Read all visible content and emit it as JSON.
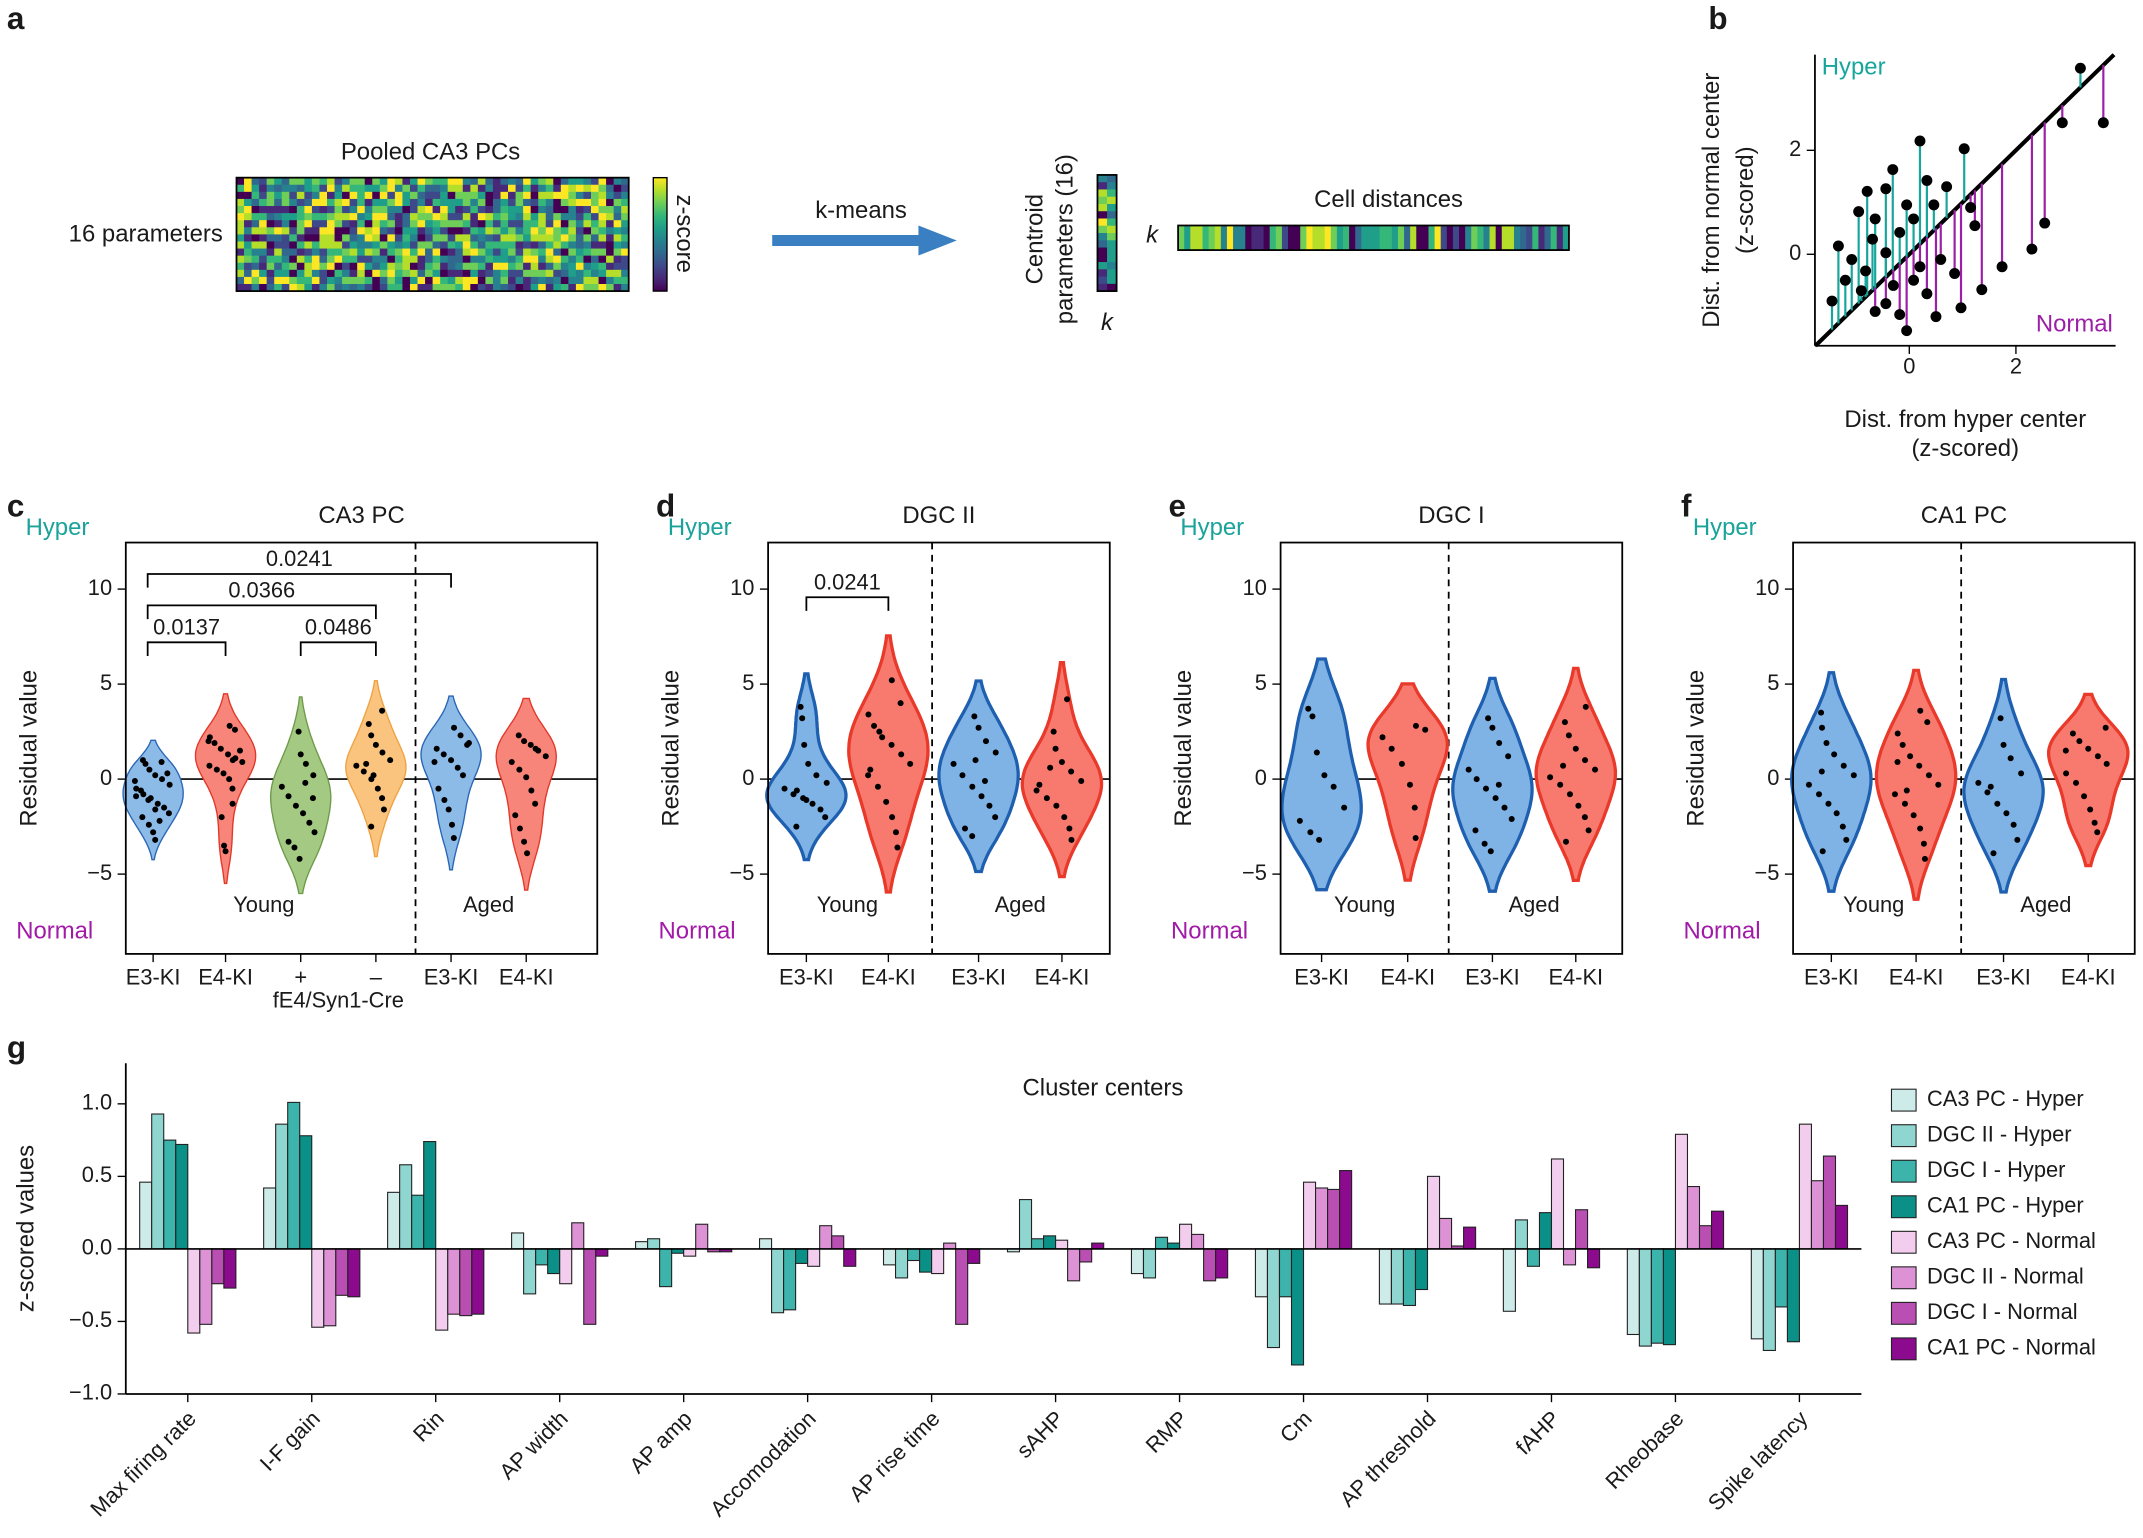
{
  "panel_labels": [
    "a",
    "b",
    "c",
    "d",
    "e",
    "f",
    "g"
  ],
  "diagram": {
    "heatmap_title": "Pooled CA3 PCs",
    "rows_label": "16 parameters",
    "colorbar_label": "z-score",
    "arrow_label": "k-means",
    "centroid_label": [
      "Centroid",
      "parameters (16)"
    ],
    "centroid_k": "k",
    "distances_k": "k",
    "distances_title": "Cell distances"
  },
  "chart_data": [
    {
      "type": "scatter",
      "xlabel": [
        "Dist. from hyper center",
        "(z-scored)"
      ],
      "ylabel": [
        "Dist. from normal center",
        "(z-scored)"
      ],
      "xlim": [
        -1.77,
        3.87
      ],
      "ylim": [
        -1.76,
        3.84
      ],
      "xticks": [
        0,
        2
      ],
      "yticks": [
        0,
        2
      ],
      "marker_color": "#000000",
      "series": [
        {
          "name": "Hyper",
          "color": "#17a69c",
          "x": [
            0.2,
            1.03,
            -0.44,
            -0.79,
            0.33,
            -0.31,
            -0.05,
            -0.95,
            -0.64,
            -1.33,
            -1.08,
            -1.2,
            -0.82,
            -0.44,
            -0.18,
            0.08,
            0.46,
            -0.69,
            3.21,
            -1.45,
            -0.9,
            0.7
          ],
          "values": [
            2.18,
            2.03,
            1.26,
            1.21,
            1.42,
            1.63,
            0.95,
            0.82,
            0.68,
            0.16,
            -0.1,
            -0.5,
            -0.32,
            0.03,
            0.42,
            0.68,
            0.95,
            0.29,
            3.58,
            -0.9,
            -0.7,
            1.3
          ]
        },
        {
          "name": "Normal",
          "color": "#9c1fa8",
          "x": [
            1.15,
            1.23,
            2.54,
            3.64,
            2.87,
            0.59,
            0.85,
            0.33,
            -0.18,
            -0.05,
            -0.44,
            0.08,
            0.97,
            1.36,
            1.74,
            0.2,
            -0.64,
            -0.3,
            0.5,
            2.3
          ],
          "values": [
            0.9,
            0.55,
            0.6,
            2.53,
            2.53,
            -0.1,
            -0.37,
            -0.76,
            -1.16,
            -1.47,
            -0.95,
            -0.5,
            -1.03,
            -0.68,
            -0.24,
            -0.24,
            -1.1,
            -0.6,
            -1.2,
            0.1
          ]
        }
      ]
    },
    {
      "type": "violin",
      "title": "CA3 PC",
      "ylabel": "Residual value",
      "top_label": "Hyper",
      "bottom_label": "Normal",
      "xlabel": "fE4/Syn1-Cre",
      "ylim": [
        -9.2,
        12.45
      ],
      "yticks": [
        {
          "value": -5,
          "label": "−5"
        },
        0,
        5,
        10
      ],
      "categories": [
        "E3-KI",
        "E4-KI",
        "+",
        "–",
        "E3-KI",
        "E4-KI"
      ],
      "groups": [
        "Young",
        "Aged"
      ],
      "comparisons": [
        0.0241,
        0.0366,
        0.0137,
        0.0486
      ],
      "violins": [
        {
          "fill": "#8dbbe8",
          "stroke": "#2a66b5",
          "values": [
            1.0,
            0.8,
            0.5,
            0.2,
            0,
            -0.3,
            -0.5,
            -0.8,
            -1.0,
            -1.3,
            -1.5,
            -1.8,
            -2.0,
            -2.4,
            -2.8,
            -3.2,
            0.9,
            -0.1,
            -0.6,
            -1.1,
            -1.6,
            -2.2,
            0.3,
            -0.9
          ]
        },
        {
          "fill": "#f8857a",
          "stroke": "#e2382a",
          "values": [
            2.8,
            2.6,
            2.2,
            1.9,
            1.6,
            1.3,
            1.1,
            0.9,
            0.7,
            0.5,
            0.3,
            0,
            -0.5,
            -1.3,
            -2.0,
            -3.5,
            -3.8,
            1.0,
            1.5,
            2.0
          ]
        },
        {
          "fill": "#a3c982",
          "stroke": "#6f9a4a",
          "values": [
            2.5,
            1.3,
            0.8,
            0.2,
            -0.4,
            -0.9,
            -1.4,
            -1.8,
            -2.3,
            -2.8,
            -3.3,
            -3.6,
            -4.2,
            -0.2,
            -1.0
          ]
        },
        {
          "fill": "#fbc47e",
          "stroke": "#eea243",
          "values": [
            3.6,
            2.9,
            2.3,
            1.8,
            1.4,
            1.0,
            0.7,
            0.4,
            0,
            -0.5,
            -1.0,
            -1.6,
            -2.5,
            0.8,
            0.2
          ]
        },
        {
          "fill": "#8dbbe8",
          "stroke": "#2a66b5",
          "values": [
            2.7,
            2.3,
            1.9,
            1.6,
            1.3,
            1.0,
            0.6,
            0.2,
            -0.5,
            -1.1,
            -1.6,
            -2.4,
            -3.1,
            1.8,
            0.9
          ]
        },
        {
          "fill": "#f8857a",
          "stroke": "#e2382a",
          "values": [
            2.3,
            2.0,
            1.8,
            1.5,
            1.2,
            0.9,
            0.5,
            0.1,
            -0.6,
            -1.3,
            -1.9,
            -2.6,
            -3.3,
            -3.9,
            1.6
          ]
        }
      ]
    },
    {
      "type": "violin",
      "title": "DGC II",
      "ylabel": "Residual value",
      "top_label": "Hyper",
      "bottom_label": "Normal",
      "ylim": [
        -9.2,
        12.45
      ],
      "yticks": [
        {
          "value": -5,
          "label": "−5"
        },
        0,
        5,
        10
      ],
      "categories": [
        "E3-KI",
        "E4-KI",
        "E3-KI",
        "E4-KI"
      ],
      "groups": [
        "Young",
        "Aged"
      ],
      "comparisons": [
        0.0241
      ],
      "violins": [
        {
          "fill": "#7fb2e5",
          "stroke": "#1f5fb0",
          "values": [
            3.8,
            3.2,
            1.8,
            0.8,
            0.2,
            -0.2,
            -0.5,
            -0.8,
            -1.0,
            -1.3,
            -1.6,
            -2.0,
            -2.5,
            -0.6,
            -1.1
          ]
        },
        {
          "fill": "#f87a6e",
          "stroke": "#e8392a",
          "values": [
            5.2,
            4.0,
            3.4,
            2.8,
            2.2,
            1.8,
            1.3,
            0.8,
            0.2,
            -0.4,
            -1.2,
            -2.0,
            -2.8,
            -3.6,
            0.5,
            2.5
          ]
        },
        {
          "fill": "#7fb2e5",
          "stroke": "#1f5fb0",
          "values": [
            3.3,
            2.7,
            2.0,
            1.4,
            0.8,
            0.2,
            -0.4,
            -0.9,
            -1.4,
            -2.0,
            -2.6,
            -3.0,
            1.0,
            -0.1
          ]
        },
        {
          "fill": "#f87a6e",
          "stroke": "#e8392a",
          "values": [
            4.2,
            2.5,
            1.6,
            0.9,
            0.4,
            -0.1,
            -0.6,
            -1.0,
            -1.4,
            -2.0,
            -2.6,
            -3.2,
            -0.3,
            0.6
          ]
        }
      ]
    },
    {
      "type": "violin",
      "title": "DGC I",
      "ylabel": "Residual value",
      "top_label": "Hyper",
      "bottom_label": "Normal",
      "ylim": [
        -9.2,
        12.45
      ],
      "yticks": [
        {
          "value": -5,
          "label": "−5"
        },
        0,
        5,
        10
      ],
      "categories": [
        "E3-KI",
        "E4-KI",
        "E3-KI",
        "E4-KI"
      ],
      "groups": [
        "Young",
        "Aged"
      ],
      "violins": [
        {
          "fill": "#7fb2e5",
          "stroke": "#1f5fb0",
          "values": [
            3.7,
            3.3,
            1.4,
            0.2,
            -0.4,
            -1.5,
            -2.2,
            -2.8,
            -3.2
          ]
        },
        {
          "fill": "#f87a6e",
          "stroke": "#e8392a",
          "values": [
            2.8,
            2.6,
            2.2,
            1.6,
            0.8,
            -0.3,
            -1.5,
            -3.1
          ]
        },
        {
          "fill": "#7fb2e5",
          "stroke": "#1f5fb0",
          "values": [
            3.2,
            2.7,
            1.9,
            1.2,
            0.5,
            0,
            -0.5,
            -1.0,
            -1.5,
            -2.1,
            -2.7,
            -3.4,
            -3.8,
            -0.3
          ]
        },
        {
          "fill": "#f87a6e",
          "stroke": "#e8392a",
          "values": [
            3.8,
            3.0,
            2.3,
            1.6,
            1.0,
            0.5,
            0.1,
            -0.3,
            -0.8,
            -1.4,
            -2.0,
            -2.7,
            -3.3,
            0.7
          ]
        }
      ]
    },
    {
      "type": "violin",
      "title": "CA1 PC",
      "ylabel": "Residual value",
      "top_label": "Hyper",
      "bottom_label": "Normal",
      "ylim": [
        -9.2,
        12.45
      ],
      "yticks": [
        {
          "value": -5,
          "label": "−5"
        },
        0,
        5,
        10
      ],
      "categories": [
        "E3-KI",
        "E4-KI",
        "E3-KI",
        "E4-KI"
      ],
      "groups": [
        "Young",
        "Aged"
      ],
      "violins": [
        {
          "fill": "#7fb2e5",
          "stroke": "#1f5fb0",
          "values": [
            3.5,
            2.7,
            1.9,
            1.3,
            0.7,
            0.2,
            -0.3,
            -0.8,
            -1.3,
            -1.8,
            -2.5,
            -3.2,
            -3.8,
            0.4
          ]
        },
        {
          "fill": "#f87a6e",
          "stroke": "#e8392a",
          "values": [
            3.6,
            3.0,
            2.4,
            1.8,
            1.2,
            0.7,
            0.2,
            -0.3,
            -0.8,
            -1.3,
            -1.9,
            -2.6,
            -3.4,
            -4.2,
            0.9,
            -0.6
          ]
        },
        {
          "fill": "#7fb2e5",
          "stroke": "#1f5fb0",
          "values": [
            3.2,
            1.8,
            1.1,
            0.3,
            -0.2,
            -0.7,
            -1.3,
            -1.8,
            -2.4,
            -3.2,
            -3.9,
            -0.4
          ]
        },
        {
          "fill": "#f87a6e",
          "stroke": "#e8392a",
          "values": [
            2.7,
            2.4,
            2.0,
            1.6,
            1.2,
            0.8,
            0.3,
            -0.2,
            -0.9,
            -1.6,
            -2.3,
            -2.8,
            1.5
          ]
        }
      ]
    },
    {
      "type": "bar",
      "title": "Cluster centers",
      "ylabel": "z-scored values",
      "legend": "right",
      "ylim": [
        -1.0,
        1.28
      ],
      "yticks": [
        {
          "value": -1,
          "label": "−1.0"
        },
        {
          "value": -0.5,
          "label": "−0.5"
        },
        {
          "value": 0,
          "label": "0.0"
        },
        0.5,
        {
          "value": 1,
          "label": "1.0"
        }
      ],
      "categories": [
        "Max firing rate",
        "I-F gain",
        "Rin",
        "AP width",
        "AP amp",
        "Accomodation",
        "AP rise time",
        "sAHP",
        "RMP",
        "Cm",
        "AP threshold",
        "fAHP",
        "Rheobase",
        "Spike latency"
      ],
      "series": [
        {
          "name": "CA3 PC - Hyper",
          "color": "#cdebe8",
          "values": [
            0.46,
            0.42,
            0.39,
            0.11,
            0.05,
            0.07,
            -0.11,
            -0.02,
            -0.17,
            -0.33,
            -0.38,
            -0.43,
            -0.59,
            -0.62
          ]
        },
        {
          "name": "DGC II - Hyper",
          "color": "#8fd5d0",
          "values": [
            0.93,
            0.86,
            0.58,
            -0.31,
            0.07,
            -0.44,
            -0.2,
            0.34,
            -0.2,
            -0.68,
            -0.38,
            0.2,
            -0.67,
            -0.7
          ]
        },
        {
          "name": "DGC I - Hyper",
          "color": "#3cb3ab",
          "values": [
            0.75,
            1.01,
            0.37,
            -0.11,
            -0.26,
            -0.42,
            -0.08,
            0.07,
            0.08,
            -0.33,
            -0.39,
            -0.12,
            -0.65,
            -0.4
          ]
        },
        {
          "name": "CA1 PC - Hyper",
          "color": "#0a9086",
          "values": [
            0.72,
            0.78,
            0.74,
            -0.17,
            -0.03,
            -0.1,
            -0.16,
            0.09,
            0.04,
            -0.8,
            -0.28,
            0.25,
            -0.66,
            -0.64
          ]
        },
        {
          "name": "CA3 PC - Normal",
          "color": "#f2cdee",
          "values": [
            -0.58,
            -0.54,
            -0.56,
            -0.24,
            -0.05,
            -0.12,
            -0.17,
            0.06,
            0.17,
            0.46,
            0.5,
            0.62,
            0.79,
            0.86
          ]
        },
        {
          "name": "DGC II - Normal",
          "color": "#dc92d5",
          "values": [
            -0.52,
            -0.53,
            -0.45,
            0.18,
            0.17,
            0.16,
            0.04,
            -0.22,
            0.1,
            0.42,
            0.21,
            -0.11,
            0.43,
            0.47
          ]
        },
        {
          "name": "DGC I - Normal",
          "color": "#b94fb2",
          "values": [
            -0.24,
            -0.32,
            -0.46,
            -0.52,
            -0.02,
            0.09,
            -0.52,
            -0.09,
            -0.22,
            0.41,
            0.02,
            0.27,
            0.16,
            0.64
          ]
        },
        {
          "name": "CA1 PC - Normal",
          "color": "#8b0a8e",
          "values": [
            -0.27,
            -0.33,
            -0.45,
            -0.05,
            -0.02,
            -0.12,
            -0.1,
            0.04,
            -0.2,
            0.54,
            0.15,
            -0.13,
            0.26,
            0.3
          ]
        }
      ]
    }
  ]
}
